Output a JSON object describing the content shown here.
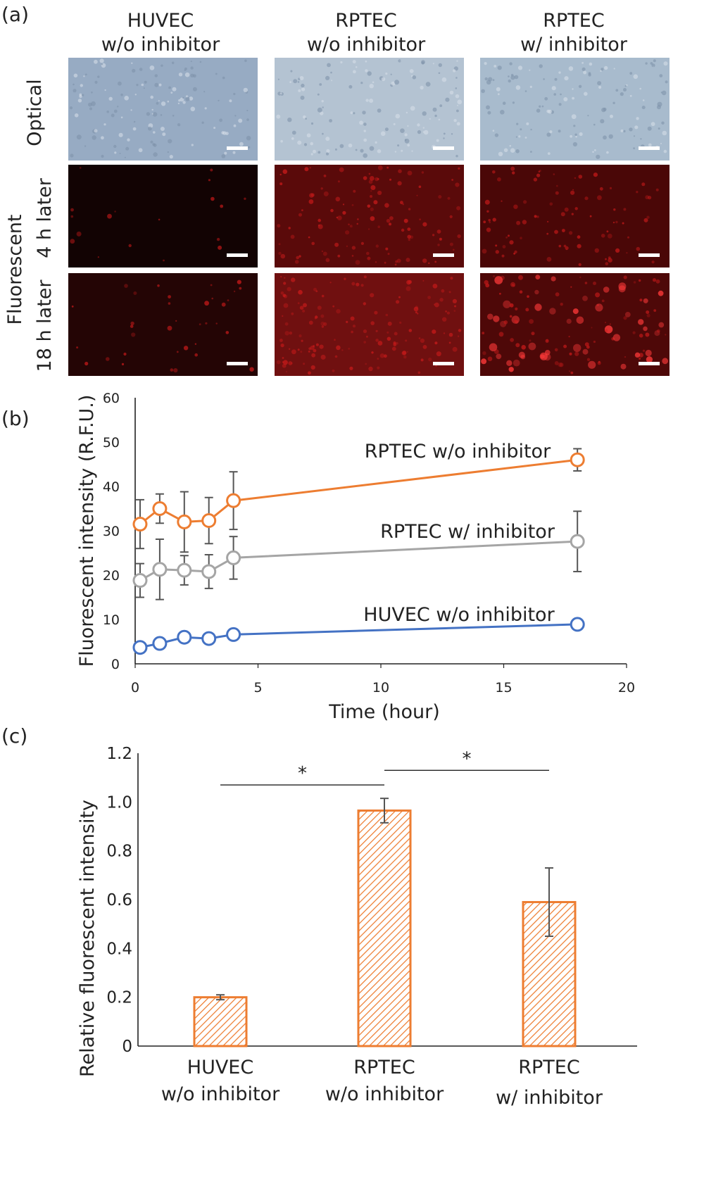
{
  "panel_a": {
    "panel_label": "(a)",
    "columns": [
      {
        "line1": "HUVEC",
        "line2": "w/o inhibitor"
      },
      {
        "line1": "RPTEC",
        "line2": "w/o inhibitor"
      },
      {
        "line1": "RPTEC",
        "line2": "w/ inhibitor"
      }
    ],
    "rows": [
      {
        "label": "Optical",
        "type": "optical"
      },
      {
        "label": "4 h later",
        "type": "fluorescent"
      },
      {
        "label": "18 h later",
        "type": "fluorescent"
      }
    ],
    "group_label": "Fluorescent",
    "colors": {
      "optical": "#9fb1c6",
      "fluor_dim": "#1a0505",
      "fluor_mid": "#6a0c0c",
      "fluor_bright": "#9a1414"
    }
  },
  "chart_data": [
    {
      "type": "line",
      "panel_label": "(b)",
      "xlabel": "Time (hour)",
      "ylabel": "Fluorescent intensity (R.F.U.)",
      "xlim": [
        0,
        20
      ],
      "ylim": [
        0,
        60
      ],
      "xticks": [
        0,
        5,
        10,
        15,
        20
      ],
      "yticks": [
        0,
        10,
        20,
        30,
        40,
        50,
        60
      ],
      "x": [
        0.2,
        1,
        2,
        3,
        4,
        18
      ],
      "series": [
        {
          "name": "RPTEC w/o inhibitor",
          "color": "#ed7d31",
          "values": [
            31.5,
            35,
            32,
            32.3,
            36.8,
            46
          ],
          "errors": [
            5.5,
            3.3,
            6.8,
            5.2,
            6.5,
            2.5
          ]
        },
        {
          "name": "RPTEC w/ inhibitor",
          "color": "#a5a5a5",
          "values": [
            18.8,
            21.3,
            21.1,
            20.8,
            23.9,
            27.6
          ],
          "errors": [
            3.8,
            6.8,
            3.3,
            3.8,
            4.8,
            6.8
          ]
        },
        {
          "name": "HUVEC w/o inhibitor",
          "color": "#4472c4",
          "values": [
            3.7,
            4.6,
            6,
            5.7,
            6.6,
            8.9
          ],
          "errors": [
            0.4,
            0.4,
            0.4,
            0.4,
            0.4,
            0.5
          ]
        }
      ],
      "grid": false
    },
    {
      "type": "bar",
      "panel_label": "(c)",
      "ylabel": "Relative fluorescent intensity",
      "ylim": [
        0,
        1.2
      ],
      "yticks": [
        "0",
        "0.2",
        "0.4",
        "0.6",
        "0.8",
        "1.0",
        "1.2"
      ],
      "categories": [
        {
          "line1": "HUVEC",
          "line2": "w/o inhibitor"
        },
        {
          "line1": "RPTEC",
          "line2": "w/o inhibitor"
        },
        {
          "line1": "RPTEC",
          "line2": "w/ inhibitor"
        }
      ],
      "values": [
        0.2,
        0.965,
        0.59
      ],
      "errors": [
        0.01,
        0.05,
        0.14
      ],
      "bar_color": "#ed7d31",
      "significance": [
        {
          "from": 0,
          "to": 1,
          "y": 1.07,
          "label": "*"
        },
        {
          "from": 1,
          "to": 2,
          "y": 1.13,
          "label": "*"
        }
      ],
      "grid": false
    }
  ]
}
